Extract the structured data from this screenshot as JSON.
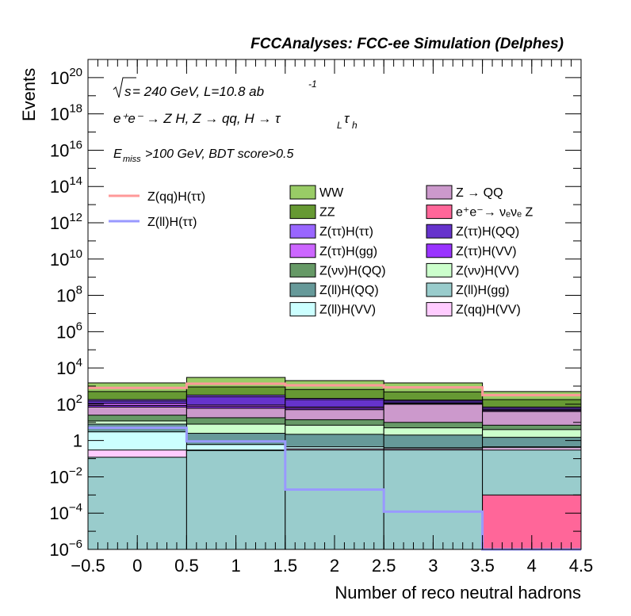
{
  "header": {
    "title": "FCCAnalyses: FCC-ee Simulation (Delphes)"
  },
  "annotations": {
    "energy_prefix": "s",
    "energy_text": " = 240 GeV, L=10.8 ab",
    "energy_exp": "-1",
    "process_text": "e⁺e⁻ → Z H, Z → qq, H → τ",
    "process_sub1": "L",
    "process_mid": "τ",
    "process_sub2": "h",
    "cut_E": "E",
    "cut_sub": "miss",
    "cut_text": ">100 GeV, BDT score>0.5"
  },
  "chart_data": {
    "type": "bar",
    "stacked": true,
    "xlabel": "Number of reco neutral hadrons",
    "ylabel": "Events",
    "xlim": [
      -0.5,
      4.5
    ],
    "ylim": [
      1e-06,
      1e+21
    ],
    "log_y": true,
    "x_ticks": [
      "−0.5",
      "0",
      "0.5",
      "1",
      "1.5",
      "2",
      "2.5",
      "3",
      "3.5",
      "4",
      "4.5"
    ],
    "y_ticks": [
      {
        "base": "10",
        "exp": "−6",
        "value": 1e-06
      },
      {
        "base": "10",
        "exp": "−4",
        "value": 0.0001
      },
      {
        "base": "10",
        "exp": "−2",
        "value": 0.01
      },
      {
        "base": "1",
        "exp": "",
        "value": 1
      },
      {
        "base": "10",
        "exp": "2",
        "value": 100
      },
      {
        "base": "10",
        "exp": "4",
        "value": 10000.0
      },
      {
        "base": "10",
        "exp": "6",
        "value": 1000000.0
      },
      {
        "base": "10",
        "exp": "8",
        "value": 100000000.0
      },
      {
        "base": "10",
        "exp": "10",
        "value": 10000000000.0
      },
      {
        "base": "10",
        "exp": "12",
        "value": 1000000000000.0
      },
      {
        "base": "10",
        "exp": "14",
        "value": 100000000000000.0
      },
      {
        "base": "10",
        "exp": "16",
        "value": 1e+16
      },
      {
        "base": "10",
        "exp": "18",
        "value": 1e+18
      },
      {
        "base": "10",
        "exp": "20",
        "value": 1e+20
      }
    ],
    "bins": [
      {
        "low": -0.5,
        "high": 0.5
      },
      {
        "low": 0.5,
        "high": 1.5
      },
      {
        "low": 1.5,
        "high": 2.5
      },
      {
        "low": 2.5,
        "high": 3.5
      },
      {
        "low": 3.5,
        "high": 4.5
      }
    ],
    "background_stack_top_down": [
      {
        "name": "WW",
        "color": "#99cc66",
        "totals": [
          1500,
          3000,
          2000,
          1500,
          500
        ]
      },
      {
        "name": "ZZ",
        "color": "#669933",
        "totals": [
          500,
          900,
          650,
          480,
          180
        ]
      },
      {
        "name": "Z(ττ)H(ττ)",
        "color": "#9966ff",
        "totals": [
          180,
          320,
          210,
          170,
          70
        ]
      },
      {
        "name": "Z(ττ)H(QQ)",
        "color": "#6633cc",
        "totals": [
          150,
          260,
          180,
          150,
          60
        ]
      },
      {
        "name": "Z(ττ)H(gg)",
        "color": "#cc66ff",
        "totals": [
          110,
          90,
          70,
          120,
          50
        ]
      },
      {
        "name": "Z(ττ)H(VV)",
        "color": "#9933ff",
        "totals": [
          85,
          75,
          60,
          110,
          45
        ]
      },
      {
        "name": "Z → QQ",
        "color": "#cc99cc",
        "totals": [
          70,
          60,
          50,
          100,
          40
        ]
      },
      {
        "name": "Z(νν)H(QQ)",
        "color": "#669966",
        "totals": [
          25,
          18,
          14,
          10,
          7
        ]
      },
      {
        "name": "Z(νν)H(VV)",
        "color": "#ccffcc",
        "totals": [
          12,
          8,
          7,
          5,
          4
        ]
      },
      {
        "name": "Z(ll)H(QQ)",
        "color": "#669999",
        "totals": [
          8,
          2.5,
          2.2,
          2.0,
          1.5
        ]
      },
      {
        "name": "Z(ll)H(VV)",
        "color": "#ccffff",
        "totals": [
          3,
          0.6,
          0.45,
          0.4,
          0.45
        ]
      },
      {
        "name": "Z(qq)H(VV)",
        "color": "#ffccff",
        "totals": [
          0.3,
          0.3,
          0.35,
          0.35,
          0.4
        ]
      },
      {
        "name": "Z(ll)H(gg)",
        "color": "#99cccc",
        "totals": [
          0.12,
          0.28,
          0.3,
          0.3,
          0.3
        ]
      },
      {
        "name": "e⁺e⁻→ νₑνₑ Z",
        "color": "#ff6699",
        "totals": [
          0,
          0,
          0,
          0,
          0.001
        ]
      }
    ],
    "signal_lines": [
      {
        "name": "Z(qq)H(ττ)",
        "color": "#ff9999",
        "values": [
          800,
          1350,
          1100,
          850,
          320
        ]
      },
      {
        "name": "Z(ll)H(ττ)",
        "color": "#9999ff",
        "values": [
          5.0,
          0.9,
          0.002,
          0.00012,
          8e-07
        ]
      }
    ],
    "legend_placement": "top-right"
  }
}
